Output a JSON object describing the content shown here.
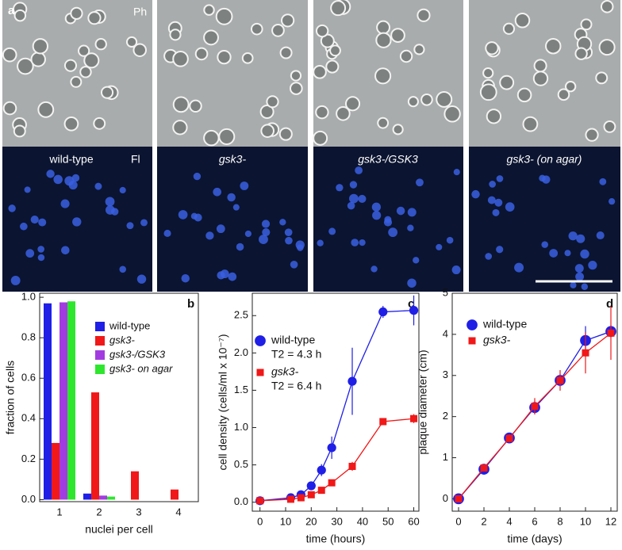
{
  "panel_a": {
    "panel_label": "a",
    "phase_label": "Ph",
    "fluor_label": "Fl",
    "strains": [
      "wild-type",
      "gsk3-",
      "gsk3-/GSK3",
      "gsk3- (on agar)"
    ]
  },
  "chart_data": [
    {
      "type": "bar",
      "panel_label": "b",
      "ylabel": "fraction of cells",
      "xlabel": "nuclei per cell",
      "categories": [
        "1",
        "2",
        "3",
        "4"
      ],
      "series": [
        {
          "name": "wild-type",
          "color": "#1f1fe6",
          "values": [
            0.97,
            0.03,
            0,
            0
          ]
        },
        {
          "name": "gsk3-",
          "color": "#f01818",
          "values": [
            0.28,
            0.53,
            0.14,
            0.05
          ]
        },
        {
          "name": "gsk3-/GSK3",
          "color": "#a23ce0",
          "values": [
            0.975,
            0.02,
            0,
            0
          ]
        },
        {
          "name": "gsk3- on agar",
          "color": "#2ee62e",
          "values": [
            0.98,
            0.015,
            0,
            0
          ]
        }
      ],
      "ylim": [
        -0.01,
        1.02
      ],
      "yticks": [
        {
          "value": 0,
          "label": "0.0"
        },
        0.2,
        0.4,
        0.6,
        0.8,
        {
          "value": 1,
          "label": "1.0"
        }
      ],
      "legend": "upper right"
    },
    {
      "type": "line",
      "panel_label": "c",
      "ylabel": "cell density (cells/ml x 10⁻⁷)",
      "xlabel": "time (hours)",
      "x": [
        0,
        12,
        16,
        20,
        24,
        28,
        36,
        48,
        60
      ],
      "series": [
        {
          "name": "wild-type",
          "color": "#1f1fe6",
          "marker": "circle",
          "note": "T2 = 4.3 h",
          "values": [
            0.02,
            0.06,
            0.1,
            0.22,
            0.43,
            0.73,
            1.62,
            2.55,
            2.57
          ],
          "errors": [
            0.05,
            0.03,
            0.03,
            0.04,
            0.08,
            0.15,
            0.45,
            0.08,
            0.2
          ]
        },
        {
          "name": "gsk3-",
          "color": "#f01818",
          "marker": "square",
          "note": "T2 = 6.4 h",
          "values": [
            0.02,
            0.04,
            0.06,
            0.1,
            0.16,
            0.26,
            0.48,
            1.08,
            1.12
          ],
          "errors": [
            0.03,
            0.03,
            0.03,
            0.03,
            0.03,
            0.04,
            0.06,
            0.04,
            0.06
          ]
        }
      ],
      "xlim": [
        -3,
        62
      ],
      "xticks": [
        0,
        10,
        20,
        30,
        40,
        50,
        60
      ],
      "ylim": [
        -0.12,
        2.8
      ],
      "yticks": [
        {
          "value": 0,
          "label": "0.0"
        },
        0.5,
        {
          "value": 1,
          "label": "1.0"
        },
        1.5,
        {
          "value": 2,
          "label": "2.0"
        },
        2.5
      ],
      "legend": "upper left"
    },
    {
      "type": "line",
      "panel_label": "d",
      "ylabel": "plaque diameter (cm)",
      "xlabel": "time (days)",
      "x": [
        0,
        2,
        4,
        6,
        8,
        10,
        12
      ],
      "series": [
        {
          "name": "wild-type",
          "color": "#1f1fe6",
          "marker": "circle",
          "values": [
            0,
            0.72,
            1.48,
            2.22,
            2.88,
            3.85,
            4.07
          ],
          "errors": [
            0.05,
            0.08,
            0.1,
            0.15,
            0.15,
            0.35,
            0.15
          ]
        },
        {
          "name": "gsk3-",
          "color": "#f01818",
          "marker": "square",
          "values": [
            0,
            0.75,
            1.47,
            2.25,
            2.88,
            3.55,
            4.03
          ],
          "errors": [
            0.05,
            0.08,
            0.1,
            0.2,
            0.25,
            0.5,
            0.65
          ]
        }
      ],
      "xlim": [
        -0.5,
        12.5
      ],
      "xticks": [
        0,
        2,
        4,
        6,
        8,
        10,
        12
      ],
      "ylim": [
        -0.3,
        5
      ],
      "yticks": [
        0,
        1,
        2,
        3,
        4,
        5
      ],
      "legend": "upper left"
    }
  ]
}
